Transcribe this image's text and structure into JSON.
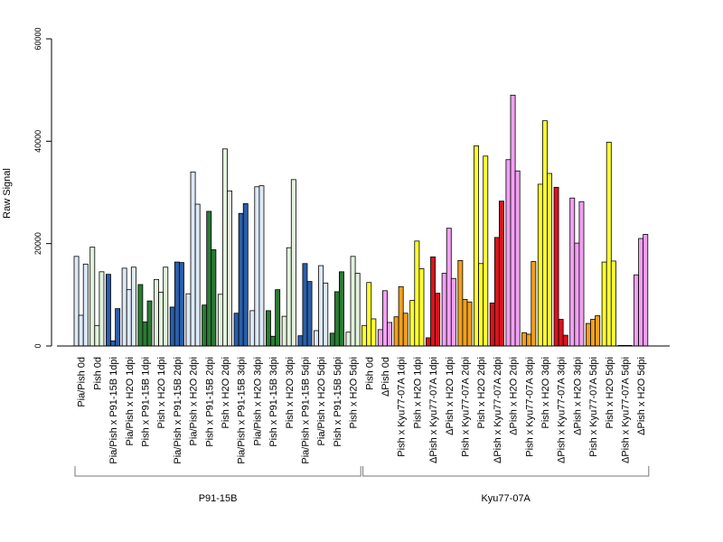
{
  "chart_data": {
    "type": "bar",
    "ylabel": "Raw Signal",
    "ylim": [
      0,
      60000
    ],
    "yticks": [
      0,
      20000,
      40000,
      60000
    ],
    "grid": false,
    "legend": "none",
    "categories": [
      {
        "label": "Pia/Pish 0d",
        "color": "#dde9f7",
        "values": [
          17500,
          6000,
          16000
        ]
      },
      {
        "label": "Pish 0d",
        "color": "#e2f2dc",
        "values": [
          19300,
          4000,
          14500
        ]
      },
      {
        "label": "Pia/Pish x P91-15B 1dpi",
        "color": "#2a5ea8",
        "values": [
          14000,
          1000,
          7300
        ]
      },
      {
        "label": "Pia/Pish x H2O 1dpi",
        "color": "#dde9f7",
        "values": [
          15200,
          11000,
          15400
        ]
      },
      {
        "label": "Pish x P91-15B 1dpi",
        "color": "#2b7a34",
        "values": [
          12000,
          4700,
          8800
        ]
      },
      {
        "label": "Pish x H2O 1dpi",
        "color": "#e2f2dc",
        "values": [
          13000,
          10500,
          15400
        ]
      },
      {
        "label": "Pia/Pish x P91-15B 2dpi",
        "color": "#2a5ea8",
        "values": [
          7600,
          16400,
          16300
        ]
      },
      {
        "label": "Pia/Pish x H2O 2dpi",
        "color": "#dde9f7",
        "values": [
          10200,
          34000,
          27700
        ]
      },
      {
        "label": "Pish x P91-15B 2dpi",
        "color": "#2b7a34",
        "values": [
          8000,
          26300,
          18800
        ]
      },
      {
        "label": "Pish x H2O 2dpi",
        "color": "#e2f2dc",
        "values": [
          10100,
          38500,
          30300
        ]
      },
      {
        "label": "Pia/Pish x P91-15B 3dpi",
        "color": "#2a5ea8",
        "values": [
          6400,
          25900,
          27800
        ]
      },
      {
        "label": "Pia/Pish x H2O 3dpi",
        "color": "#dde9f7",
        "values": [
          6900,
          31100,
          31300
        ]
      },
      {
        "label": "Pish x P91-15B 3dpi",
        "color": "#2b7a34",
        "values": [
          6900,
          1900,
          11000
        ]
      },
      {
        "label": "Pish x H2O 3dpi",
        "color": "#e2f2dc",
        "values": [
          5800,
          19200,
          32500
        ]
      },
      {
        "label": "Pia/Pish x P91-15B 5dpi",
        "color": "#2a5ea8",
        "values": [
          2000,
          16100,
          12600
        ]
      },
      {
        "label": "Pia/Pish x H2O 5dpi",
        "color": "#dde9f7",
        "values": [
          3000,
          15700,
          12300
        ]
      },
      {
        "label": "Pish x P91-15B 5dpi",
        "color": "#2b7a34",
        "values": [
          2500,
          10600,
          14500
        ]
      },
      {
        "label": "Pish x H2O 5dpi",
        "color": "#e2f2dc",
        "values": [
          2700,
          17500,
          14200
        ]
      },
      {
        "label": "Pish 0d",
        "color": "#ffff33",
        "values": [
          4000,
          12400,
          5300
        ]
      },
      {
        "label": "ΔPish 0d",
        "color": "#f2a0f2",
        "values": [
          3200,
          10800,
          4600
        ]
      },
      {
        "label": "Pish x Kyu77-07A 1dpi",
        "color": "#f0a020",
        "values": [
          5700,
          11600,
          6400
        ]
      },
      {
        "label": "Pish x H2O 1dpi",
        "color": "#ffff33",
        "values": [
          8900,
          20500,
          15100
        ]
      },
      {
        "label": "ΔPish x Kyu77-07A 1dpi",
        "color": "#d7141f",
        "values": [
          1600,
          17400,
          10300
        ]
      },
      {
        "label": "ΔPish x H2O 1dpi",
        "color": "#f2a0f2",
        "values": [
          14200,
          23000,
          13200
        ]
      },
      {
        "label": "Pish x Kyu77-07A 2dpi",
        "color": "#f0a020",
        "values": [
          16700,
          9100,
          8600
        ]
      },
      {
        "label": "Pish x H2O 2dpi",
        "color": "#ffff33",
        "values": [
          39100,
          16100,
          37100
        ]
      },
      {
        "label": "ΔPish x Kyu77-07A 2dpi",
        "color": "#d7141f",
        "values": [
          8400,
          21200,
          28300
        ]
      },
      {
        "label": "ΔPish x H2O 2dpi",
        "color": "#f2a0f2",
        "values": [
          36400,
          49000,
          34200
        ]
      },
      {
        "label": "Pish x Kyu77-07A 3dpi",
        "color": "#f0a020",
        "values": [
          2600,
          2300,
          16500
        ]
      },
      {
        "label": "Pish x H2O 3dpi",
        "color": "#ffff33",
        "values": [
          31600,
          44000,
          33700
        ]
      },
      {
        "label": "ΔPish x Kyu77-07A 3dpi",
        "color": "#d7141f",
        "values": [
          31000,
          5200,
          2100
        ]
      },
      {
        "label": "ΔPish x H2O 3dpi",
        "color": "#f2a0f2",
        "values": [
          28900,
          20100,
          28200
        ]
      },
      {
        "label": "Pish x Kyu77-07A 5dpi",
        "color": "#f0a020",
        "values": [
          4400,
          5200,
          5900
        ]
      },
      {
        "label": "Pish x H2O 5dpi",
        "color": "#ffff33",
        "values": [
          16400,
          39800,
          16600
        ]
      },
      {
        "label": "ΔPish x Kyu77-07A 5dpi",
        "color": "#d7141f",
        "values": [
          100,
          100,
          100
        ]
      },
      {
        "label": "ΔPish x H2O 5dpi",
        "color": "#f2a0f2",
        "values": [
          13900,
          21000,
          21800
        ]
      }
    ],
    "groups": [
      {
        "label": "P91-15B",
        "from": 0,
        "to": 17
      },
      {
        "label": "Kyu77-07A",
        "from": 18,
        "to": 35
      }
    ]
  }
}
